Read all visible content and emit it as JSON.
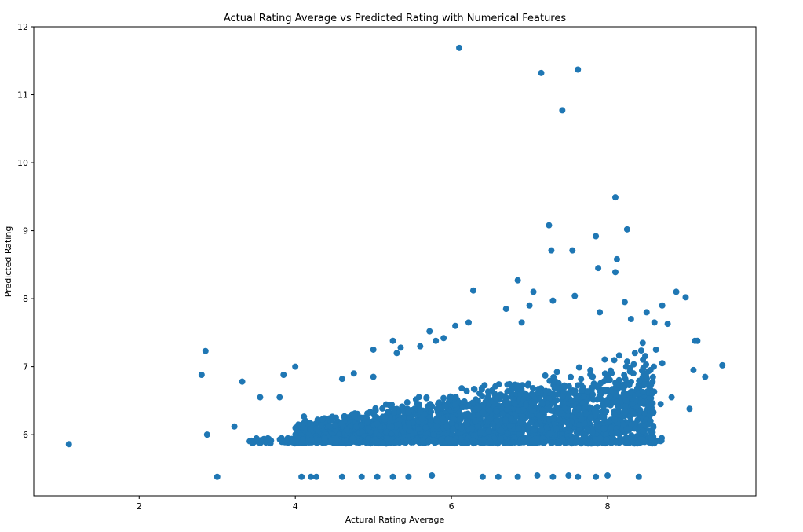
{
  "chart_data": {
    "type": "scatter",
    "title": "Actual Rating Average vs Predicted Rating with Numerical Features",
    "xlabel": "Actural Rating Average",
    "ylabel": "Predicted Rating",
    "xlim": [
      0.65,
      9.9
    ],
    "ylim": [
      5.1,
      12.0
    ],
    "xticks": [
      2,
      4,
      6,
      8
    ],
    "yticks": [
      6,
      7,
      8,
      9,
      10,
      11,
      12
    ],
    "grid": false,
    "legend": "none",
    "marker_color": "#1f77b4",
    "series": [
      {
        "points": [
          [
            1.1,
            5.86
          ],
          [
            2.8,
            6.88
          ],
          [
            2.85,
            7.23
          ],
          [
            2.87,
            6.0
          ],
          [
            3.0,
            5.38
          ],
          [
            3.22,
            6.12
          ],
          [
            3.32,
            6.78
          ],
          [
            3.55,
            6.55
          ],
          [
            3.8,
            6.55
          ],
          [
            3.85,
            6.88
          ],
          [
            4.0,
            7.0
          ],
          [
            4.08,
            5.38
          ],
          [
            4.2,
            5.38
          ],
          [
            4.27,
            5.38
          ],
          [
            4.6,
            6.82
          ],
          [
            4.75,
            6.9
          ],
          [
            5.0,
            6.85
          ],
          [
            5.0,
            7.25
          ],
          [
            5.25,
            7.38
          ],
          [
            5.3,
            7.2
          ],
          [
            5.35,
            7.28
          ],
          [
            5.6,
            7.3
          ],
          [
            5.72,
            7.52
          ],
          [
            5.8,
            7.38
          ],
          [
            5.9,
            7.42
          ],
          [
            6.05,
            7.6
          ],
          [
            6.1,
            11.69
          ],
          [
            6.22,
            7.65
          ],
          [
            6.28,
            8.12
          ],
          [
            6.7,
            7.85
          ],
          [
            6.85,
            8.27
          ],
          [
            6.9,
            7.65
          ],
          [
            7.0,
            7.9
          ],
          [
            7.05,
            8.1
          ],
          [
            7.15,
            11.32
          ],
          [
            7.25,
            9.08
          ],
          [
            7.28,
            8.71
          ],
          [
            7.3,
            7.97
          ],
          [
            7.42,
            10.77
          ],
          [
            7.55,
            8.71
          ],
          [
            7.58,
            8.04
          ],
          [
            7.62,
            11.37
          ],
          [
            7.85,
            8.92
          ],
          [
            7.88,
            8.45
          ],
          [
            7.9,
            7.8
          ],
          [
            8.1,
            9.49
          ],
          [
            8.1,
            8.39
          ],
          [
            8.12,
            8.58
          ],
          [
            8.22,
            7.95
          ],
          [
            8.25,
            9.02
          ],
          [
            8.3,
            7.7
          ],
          [
            8.5,
            7.8
          ],
          [
            8.6,
            7.65
          ],
          [
            8.7,
            7.9
          ],
          [
            8.77,
            7.63
          ],
          [
            8.88,
            8.1
          ],
          [
            9.0,
            8.02
          ],
          [
            9.05,
            6.38
          ],
          [
            9.1,
            6.95
          ],
          [
            9.12,
            7.38
          ],
          [
            9.15,
            7.38
          ],
          [
            9.25,
            6.85
          ],
          [
            9.47,
            7.02
          ],
          [
            8.6,
            5.88
          ],
          [
            8.4,
            5.38
          ],
          [
            8.0,
            5.4
          ],
          [
            7.85,
            5.38
          ],
          [
            7.62,
            5.38
          ],
          [
            7.5,
            5.4
          ],
          [
            7.3,
            5.38
          ],
          [
            7.1,
            5.4
          ],
          [
            6.85,
            5.38
          ],
          [
            6.6,
            5.38
          ],
          [
            6.4,
            5.38
          ],
          [
            5.75,
            5.4
          ],
          [
            5.45,
            5.38
          ],
          [
            5.25,
            5.38
          ],
          [
            5.05,
            5.38
          ],
          [
            4.85,
            5.38
          ],
          [
            4.6,
            5.38
          ],
          [
            8.05,
            5.88
          ],
          [
            8.45,
            6.05
          ],
          [
            8.55,
            6.2
          ],
          [
            8.68,
            6.45
          ],
          [
            8.82,
            6.55
          ],
          [
            8.7,
            7.05
          ],
          [
            8.55,
            6.95
          ],
          [
            8.62,
            7.25
          ],
          [
            8.45,
            7.35
          ],
          [
            8.35,
            7.2
          ]
        ]
      }
    ]
  }
}
